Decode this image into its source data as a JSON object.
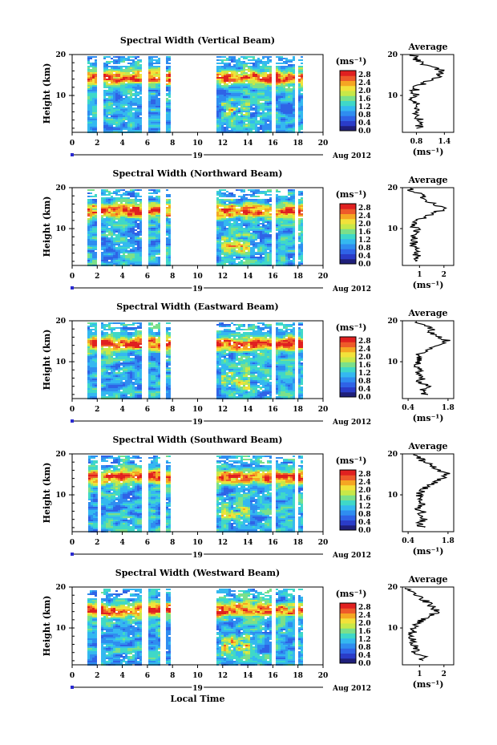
{
  "figure": {
    "date_label": "Aug 2012",
    "day_label": "19",
    "xlabel": "Local Time",
    "colorbar_unit": "(ms⁻¹)",
    "colorbar_ticks": [
      "0.0",
      "0.4",
      "0.8",
      "1.2",
      "1.6",
      "2.0",
      "2.4",
      "2.8"
    ],
    "colorbar_colors": [
      "#1f1f7a",
      "#2a3cc8",
      "#2f63e6",
      "#2f8df0",
      "#34b8f0",
      "#3fd8c8",
      "#7be08a",
      "#c8e848",
      "#f2e23a",
      "#f5a623",
      "#ee5a2a",
      "#e02020"
    ],
    "avg_title": "Average",
    "avg_unit": "(ms⁻¹)"
  },
  "chart_data": [
    {
      "type": "heatmap",
      "title": "Spectral Width (Vertical Beam)",
      "xlabel": "",
      "ylabel": "Height (km)",
      "x_ticks": [
        "0",
        "2",
        "4",
        "6",
        "8",
        "10",
        "12",
        "14",
        "16",
        "18",
        "20"
      ],
      "y_ticks": [
        "10",
        "20"
      ],
      "xlim": [
        0,
        20
      ],
      "ylim": [
        1,
        20
      ],
      "clim": [
        0,
        3
      ],
      "data_intervals_hours": [
        [
          1.2,
          1.9
        ],
        [
          2.5,
          5.5
        ],
        [
          6.1,
          6.9
        ],
        [
          7.5,
          7.8
        ],
        [
          11.5,
          15.8
        ],
        [
          16.2,
          17.7
        ],
        [
          18.0,
          18.3
        ]
      ],
      "profile": {
        "title": "Average",
        "x_ticks": [
          "0.8",
          "1.4"
        ],
        "xlim": [
          0.5,
          1.6
        ],
        "heights": [
          2,
          3,
          4,
          5,
          6,
          7,
          8,
          9,
          10,
          11,
          12,
          13,
          14,
          15,
          16,
          17,
          18,
          19,
          20
        ],
        "values": [
          0.9,
          0.85,
          0.9,
          0.8,
          0.85,
          0.75,
          0.8,
          0.7,
          0.8,
          0.75,
          0.8,
          0.95,
          1.2,
          1.3,
          1.35,
          1.1,
          0.9,
          0.8,
          0.7
        ]
      }
    },
    {
      "type": "heatmap",
      "title": "Spectral Width (Northward Beam)",
      "xlabel": "",
      "ylabel": "Height (km)",
      "x_ticks": [
        "0",
        "2",
        "4",
        "6",
        "8",
        "10",
        "12",
        "14",
        "16",
        "18",
        "20"
      ],
      "y_ticks": [
        "10",
        "20"
      ],
      "xlim": [
        0,
        20
      ],
      "ylim": [
        1,
        20
      ],
      "clim": [
        0,
        3
      ],
      "data_intervals_hours": [
        [
          1.2,
          1.9
        ],
        [
          2.3,
          5.5
        ],
        [
          6.1,
          6.9
        ],
        [
          7.5,
          7.8
        ],
        [
          11.5,
          15.8
        ],
        [
          16.2,
          17.7
        ],
        [
          18.0,
          18.3
        ]
      ],
      "profile": {
        "title": "Average",
        "x_ticks": [
          "1",
          "2"
        ],
        "xlim": [
          0.3,
          2.4
        ],
        "heights": [
          2,
          3,
          4,
          5,
          6,
          7,
          8,
          9,
          10,
          11,
          12,
          13,
          14,
          15,
          16,
          17,
          18,
          19,
          20
        ],
        "values": [
          0.9,
          1.0,
          0.8,
          0.9,
          0.7,
          0.8,
          0.7,
          0.8,
          0.9,
          0.7,
          0.9,
          1.3,
          1.7,
          2.0,
          1.6,
          1.3,
          1.1,
          0.8,
          0.5
        ]
      }
    },
    {
      "type": "heatmap",
      "title": "Spectral Width (Eastward Beam)",
      "xlabel": "",
      "ylabel": "Height (km)",
      "x_ticks": [
        "0",
        "2",
        "4",
        "6",
        "8",
        "10",
        "12",
        "14",
        "16",
        "18",
        "20"
      ],
      "y_ticks": [
        "10",
        "20"
      ],
      "xlim": [
        0,
        20
      ],
      "ylim": [
        1,
        20
      ],
      "clim": [
        0,
        3
      ],
      "data_intervals_hours": [
        [
          1.2,
          1.9
        ],
        [
          2.3,
          5.5
        ],
        [
          6.1,
          6.9
        ],
        [
          7.5,
          7.8
        ],
        [
          11.5,
          15.8
        ],
        [
          16.2,
          17.7
        ],
        [
          18.0,
          18.3
        ]
      ],
      "profile": {
        "title": "Average",
        "x_ticks": [
          "0.4",
          "1.8"
        ],
        "xlim": [
          0.2,
          2.0
        ],
        "heights": [
          2,
          3,
          4,
          5,
          6,
          7,
          8,
          9,
          10,
          11,
          12,
          13,
          14,
          15,
          16,
          17,
          18,
          19,
          20
        ],
        "values": [
          1.0,
          0.9,
          1.1,
          0.8,
          0.9,
          0.7,
          0.8,
          0.6,
          0.8,
          0.7,
          0.8,
          1.1,
          1.4,
          1.8,
          1.5,
          1.2,
          1.3,
          0.9,
          0.5
        ]
      }
    },
    {
      "type": "heatmap",
      "title": "Spectral Width (Southward Beam)",
      "xlabel": "",
      "ylabel": "Height (km)",
      "x_ticks": [
        "0",
        "2",
        "4",
        "6",
        "8",
        "10",
        "12",
        "14",
        "16",
        "18",
        "20"
      ],
      "y_ticks": [
        "10",
        "20"
      ],
      "xlim": [
        0,
        20
      ],
      "ylim": [
        1,
        20
      ],
      "clim": [
        0,
        3
      ],
      "data_intervals_hours": [
        [
          1.3,
          1.9
        ],
        [
          2.3,
          5.5
        ],
        [
          6.1,
          6.9
        ],
        [
          7.5,
          7.8
        ],
        [
          11.5,
          15.8
        ],
        [
          16.2,
          17.7
        ],
        [
          18.0,
          18.3
        ]
      ],
      "profile": {
        "title": "Average",
        "x_ticks": [
          "0.4",
          "1.8"
        ],
        "xlim": [
          0.2,
          2.0
        ],
        "heights": [
          2,
          3,
          4,
          5,
          6,
          7,
          8,
          9,
          10,
          11,
          12,
          13,
          14,
          15,
          16,
          17,
          18,
          19,
          20
        ],
        "values": [
          0.9,
          0.8,
          1.0,
          0.8,
          0.9,
          0.7,
          0.9,
          0.8,
          0.8,
          0.9,
          1.0,
          1.3,
          1.6,
          1.8,
          1.4,
          1.2,
          1.0,
          0.8,
          0.5
        ]
      }
    },
    {
      "type": "heatmap",
      "title": "Spectral Width (Westward Beam)",
      "xlabel": "Local Time",
      "ylabel": "Height (km)",
      "x_ticks": [
        "0",
        "2",
        "4",
        "6",
        "8",
        "10",
        "12",
        "14",
        "16",
        "18",
        "20"
      ],
      "y_ticks": [
        "10",
        "20"
      ],
      "xlim": [
        0,
        20
      ],
      "ylim": [
        1,
        20
      ],
      "clim": [
        0,
        3
      ],
      "data_intervals_hours": [
        [
          1.2,
          1.9
        ],
        [
          2.3,
          5.5
        ],
        [
          6.1,
          6.9
        ],
        [
          7.5,
          7.8
        ],
        [
          11.5,
          15.8
        ],
        [
          16.2,
          17.7
        ],
        [
          18.0,
          18.3
        ]
      ],
      "profile": {
        "title": "Average",
        "x_ticks": [
          "1",
          "2"
        ],
        "xlim": [
          0.3,
          2.4
        ],
        "heights": [
          2,
          3,
          4,
          5,
          6,
          7,
          8,
          9,
          10,
          11,
          12,
          13,
          14,
          15,
          16,
          17,
          18,
          19,
          20
        ],
        "values": [
          1.0,
          1.2,
          0.8,
          0.9,
          0.7,
          0.8,
          0.7,
          0.7,
          0.8,
          0.9,
          1.1,
          1.5,
          1.7,
          1.6,
          1.4,
          1.1,
          0.9,
          0.7,
          0.5
        ]
      }
    }
  ]
}
